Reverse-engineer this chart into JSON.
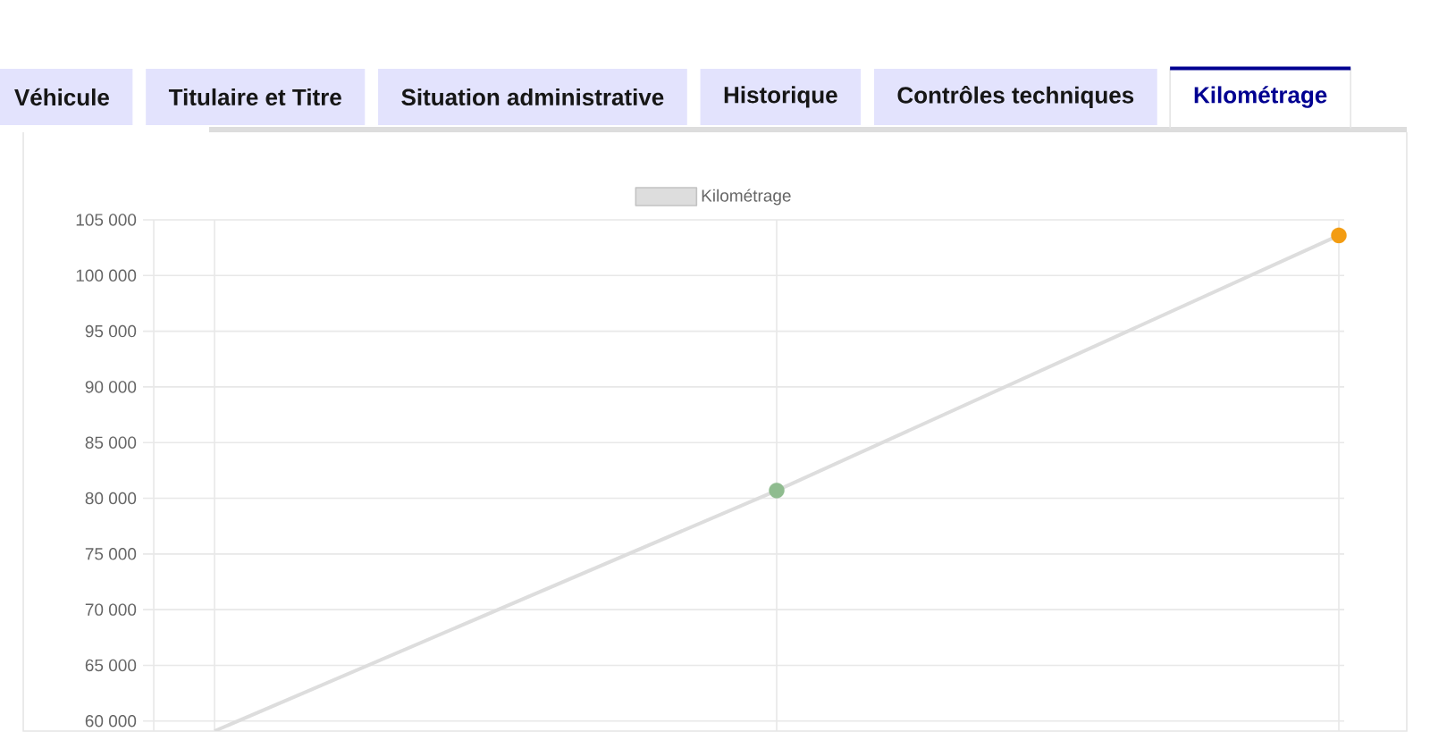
{
  "chart_data": {
    "type": "line",
    "annotations": [
      "Véhicule",
      "Titulaire et Titre",
      "Situation administrative",
      "Historique",
      "Contrôles techniques",
      "Kilométrage"
    ],
    "categories": [
      null,
      null,
      null
    ],
    "series": [
      {
        "name": "Kilométrage",
        "color": "#dddddd",
        "values": [
          59100,
          80700,
          103600
        ],
        "colors": [
          null,
          "#8fbc8f",
          "#f39c12"
        ]
      }
    ],
    "ylim": [
      59100,
      105000
    ],
    "yticks": [
      {
        "value": 60000,
        "label": "60 000"
      },
      {
        "value": 65000,
        "label": "65 000"
      },
      {
        "value": 70000,
        "label": "70 000"
      },
      {
        "value": 75000,
        "label": "75 000"
      },
      {
        "value": 80000,
        "label": "80 000"
      },
      {
        "value": 85000,
        "label": "85 000"
      },
      {
        "value": 90000,
        "label": "90 000"
      },
      {
        "value": 95000,
        "label": "95 000"
      },
      {
        "value": 100000,
        "label": "100 000"
      },
      {
        "value": 105000,
        "label": "105 000"
      }
    ],
    "tick_labels": "y",
    "grid": true,
    "legend": "top",
    "marker": "circle"
  }
}
